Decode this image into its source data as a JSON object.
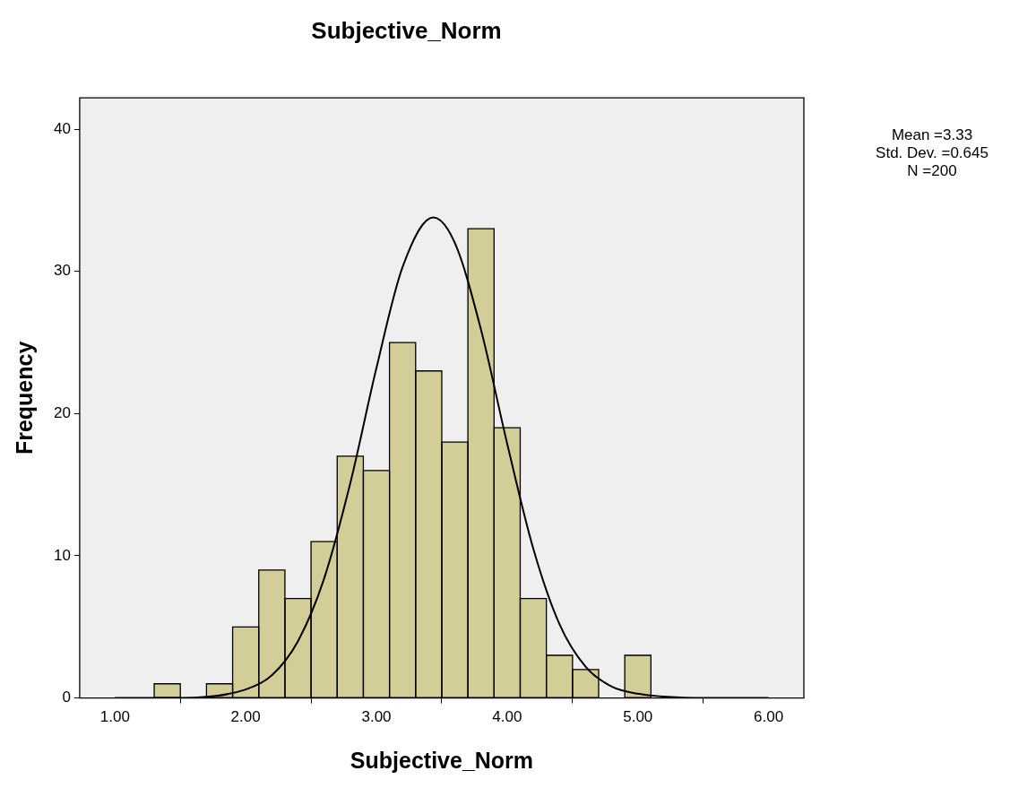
{
  "chart_data": {
    "type": "histogram",
    "title": "Subjective_Norm",
    "xlabel": "Subjective_Norm",
    "ylabel": "Frequency",
    "bins": [
      1.3,
      1.5,
      1.7,
      1.9,
      2.1,
      2.3,
      2.5,
      2.7,
      2.9,
      3.1,
      3.3,
      3.5,
      3.7,
      3.9,
      4.1,
      4.3,
      4.5,
      4.7,
      4.9,
      5.1
    ],
    "values": [
      1,
      0,
      1,
      5,
      9,
      7,
      11,
      17,
      16,
      25,
      23,
      18,
      33,
      19,
      7,
      3,
      2,
      0,
      3
    ],
    "color": "#d3ce97",
    "series": [
      {
        "type": "line",
        "color": "#000000",
        "marker": "none",
        "x": [
          1.0,
          1.5,
          2.0,
          2.2,
          2.4,
          2.6,
          2.8,
          3.0,
          3.2,
          3.435,
          3.6,
          3.8,
          4.0,
          4.2,
          4.4,
          4.6,
          4.8,
          5.0,
          5.5,
          6.0
        ],
        "values": [
          0,
          0,
          0.6,
          1.6,
          4.0,
          8.4,
          15.1,
          23.2,
          30.3,
          33.8,
          32.0,
          25.9,
          17.9,
          10.5,
          5.2,
          2.2,
          0.8,
          0.3,
          0,
          0
        ]
      }
    ],
    "xlim": [
      0.73,
      6.27
    ],
    "ylim": [
      0,
      42.2
    ],
    "xticks": [
      {
        "value": 1,
        "label": "1.00"
      },
      {
        "value": 2,
        "label": "2.00"
      },
      {
        "value": 3,
        "label": "3.00"
      },
      {
        "value": 4,
        "label": "4.00"
      },
      {
        "value": 5,
        "label": "5.00"
      },
      {
        "value": 6,
        "label": "6.00"
      }
    ],
    "yticks": [
      0,
      10,
      20,
      30,
      40
    ],
    "grid": false,
    "legend": false,
    "annotations": [
      "Mean =3.33",
      "Std. Dev. =0.645",
      "N =200"
    ]
  }
}
